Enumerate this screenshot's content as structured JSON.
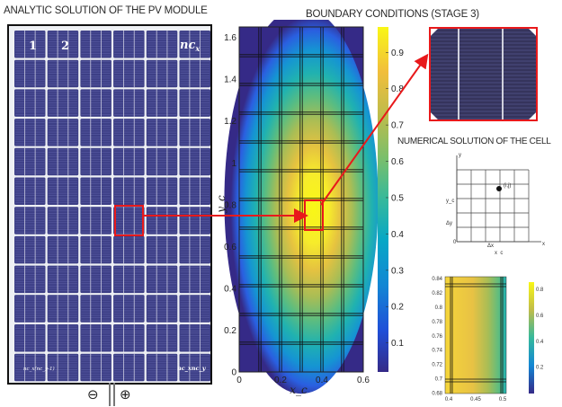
{
  "titles": {
    "module": "ANALYTIC SOLUTION OF THE PV MODULE",
    "boundary": "BOUNDARY CONDITIONS (STAGE 3)",
    "cell": "NUMERICAL SOLUTION OF THE CELL"
  },
  "pv_module": {
    "rows": 12,
    "cols": 6,
    "labels": {
      "cell1": "1",
      "cell2": "2",
      "last_col": "nc",
      "last_col_sub": "x",
      "bottom_left": "nc_x(nc_y-1)",
      "bottom_right": "nc_xnc_y"
    },
    "minus_symbol": "⊖",
    "plus_symbol": "⊕"
  },
  "colors": {
    "arrow": "#e8191b",
    "highlight": "#e8191b",
    "cell": "#3d3f86",
    "frame": "#111111"
  },
  "chart_data": [
    {
      "type": "heatmap",
      "xlabel": "x_c",
      "ylabel": "y_c",
      "xlim": [
        0,
        0.6
      ],
      "ylim": [
        0,
        1.65
      ],
      "x_ticks": [
        "0",
        "0.2",
        "0.4",
        "0.6"
      ],
      "y_ticks": [
        "0",
        "0.2",
        "0.4",
        "0.6",
        "0.8",
        "1",
        "1.2",
        "1.4",
        "1.6"
      ],
      "colorbar_ticks": [
        "0.1",
        "0.2",
        "0.3",
        "0.4",
        "0.5",
        "0.6",
        "0.7",
        "0.8",
        "0.9"
      ],
      "colorbar_range": [
        0.02,
        0.97
      ],
      "peak": {
        "x": 0.3,
        "y": 0.82,
        "value": 0.97
      },
      "minimum": 0.02,
      "grid_columns": 6,
      "grid_rows": 12
    },
    {
      "type": "heatmap",
      "y_ticks": [
        "0.68",
        "0.7",
        "0.72",
        "0.74",
        "0.76",
        "0.78",
        "0.8",
        "0.82",
        "0.84"
      ],
      "x_ticks": [
        "0.4",
        "0.45",
        "0.5"
      ],
      "colorbar_ticks": [
        "0.2",
        "0.4",
        "0.6",
        "0.8"
      ]
    }
  ],
  "grid_diagram": {
    "y_axis": "y",
    "x_axis": "x",
    "xc_label": "x_c",
    "yc_label": "y_c",
    "dx_label": "Δx",
    "dy_label": "Δy",
    "point_label": "(i,j)",
    "origin_label": "0"
  }
}
